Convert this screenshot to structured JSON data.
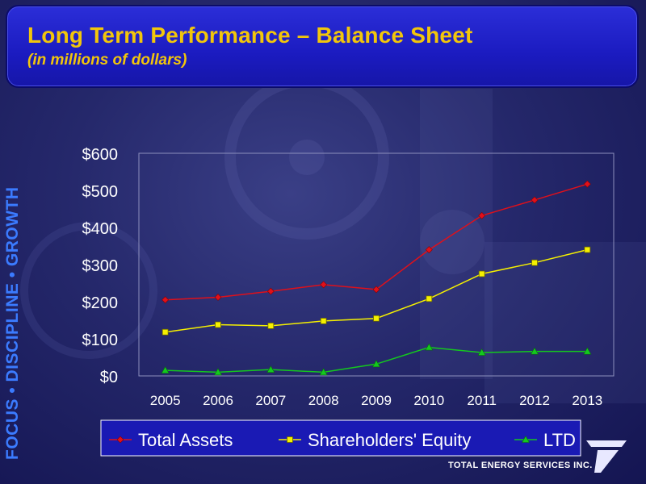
{
  "header": {
    "title": "Long Term Performance – Balance Sheet",
    "subtitle": "(in millions of dollars)"
  },
  "sidebar": {
    "tagline": "FOCUS • DISCIPLINE • GROWTH"
  },
  "branding": {
    "company": "TOTAL ENERGY SERVICES INC.",
    "logo_icon": "company-logo-icon"
  },
  "colors": {
    "background": "#25286b",
    "header_fill": "#2020c8",
    "title_text": "#f2c60b",
    "tagline_text": "#3b7bff",
    "total_assets": "#e0101a",
    "shareholders_equity": "#f5f000",
    "ltd": "#14c81e",
    "axis_text": "#ffffff",
    "legend_fill": "#1a1ab4"
  },
  "chart_data": {
    "type": "line",
    "x": [
      "2005",
      "2006",
      "2007",
      "2008",
      "2009",
      "2010",
      "2011",
      "2012",
      "2013"
    ],
    "ylim": [
      0,
      600
    ],
    "y_ticks": [
      "$0",
      "$100",
      "$200",
      "$300",
      "$400",
      "$500",
      "$600"
    ],
    "y_tick_values": [
      0,
      100,
      200,
      300,
      400,
      500,
      600
    ],
    "grid": false,
    "legend_position": "bottom",
    "series": [
      {
        "name": "Total Assets",
        "marker": "diamond",
        "color": "#e0101a",
        "values": [
          205,
          212,
          228,
          246,
          233,
          340,
          432,
          474,
          517
        ]
      },
      {
        "name": "Shareholders' Equity",
        "marker": "square",
        "color": "#f5f000",
        "values": [
          118,
          138,
          135,
          148,
          155,
          208,
          275,
          305,
          340
        ]
      },
      {
        "name": "LTD",
        "marker": "triangle",
        "color": "#14c81e",
        "values": [
          15,
          10,
          17,
          10,
          32,
          77,
          63,
          66,
          66
        ]
      }
    ]
  }
}
